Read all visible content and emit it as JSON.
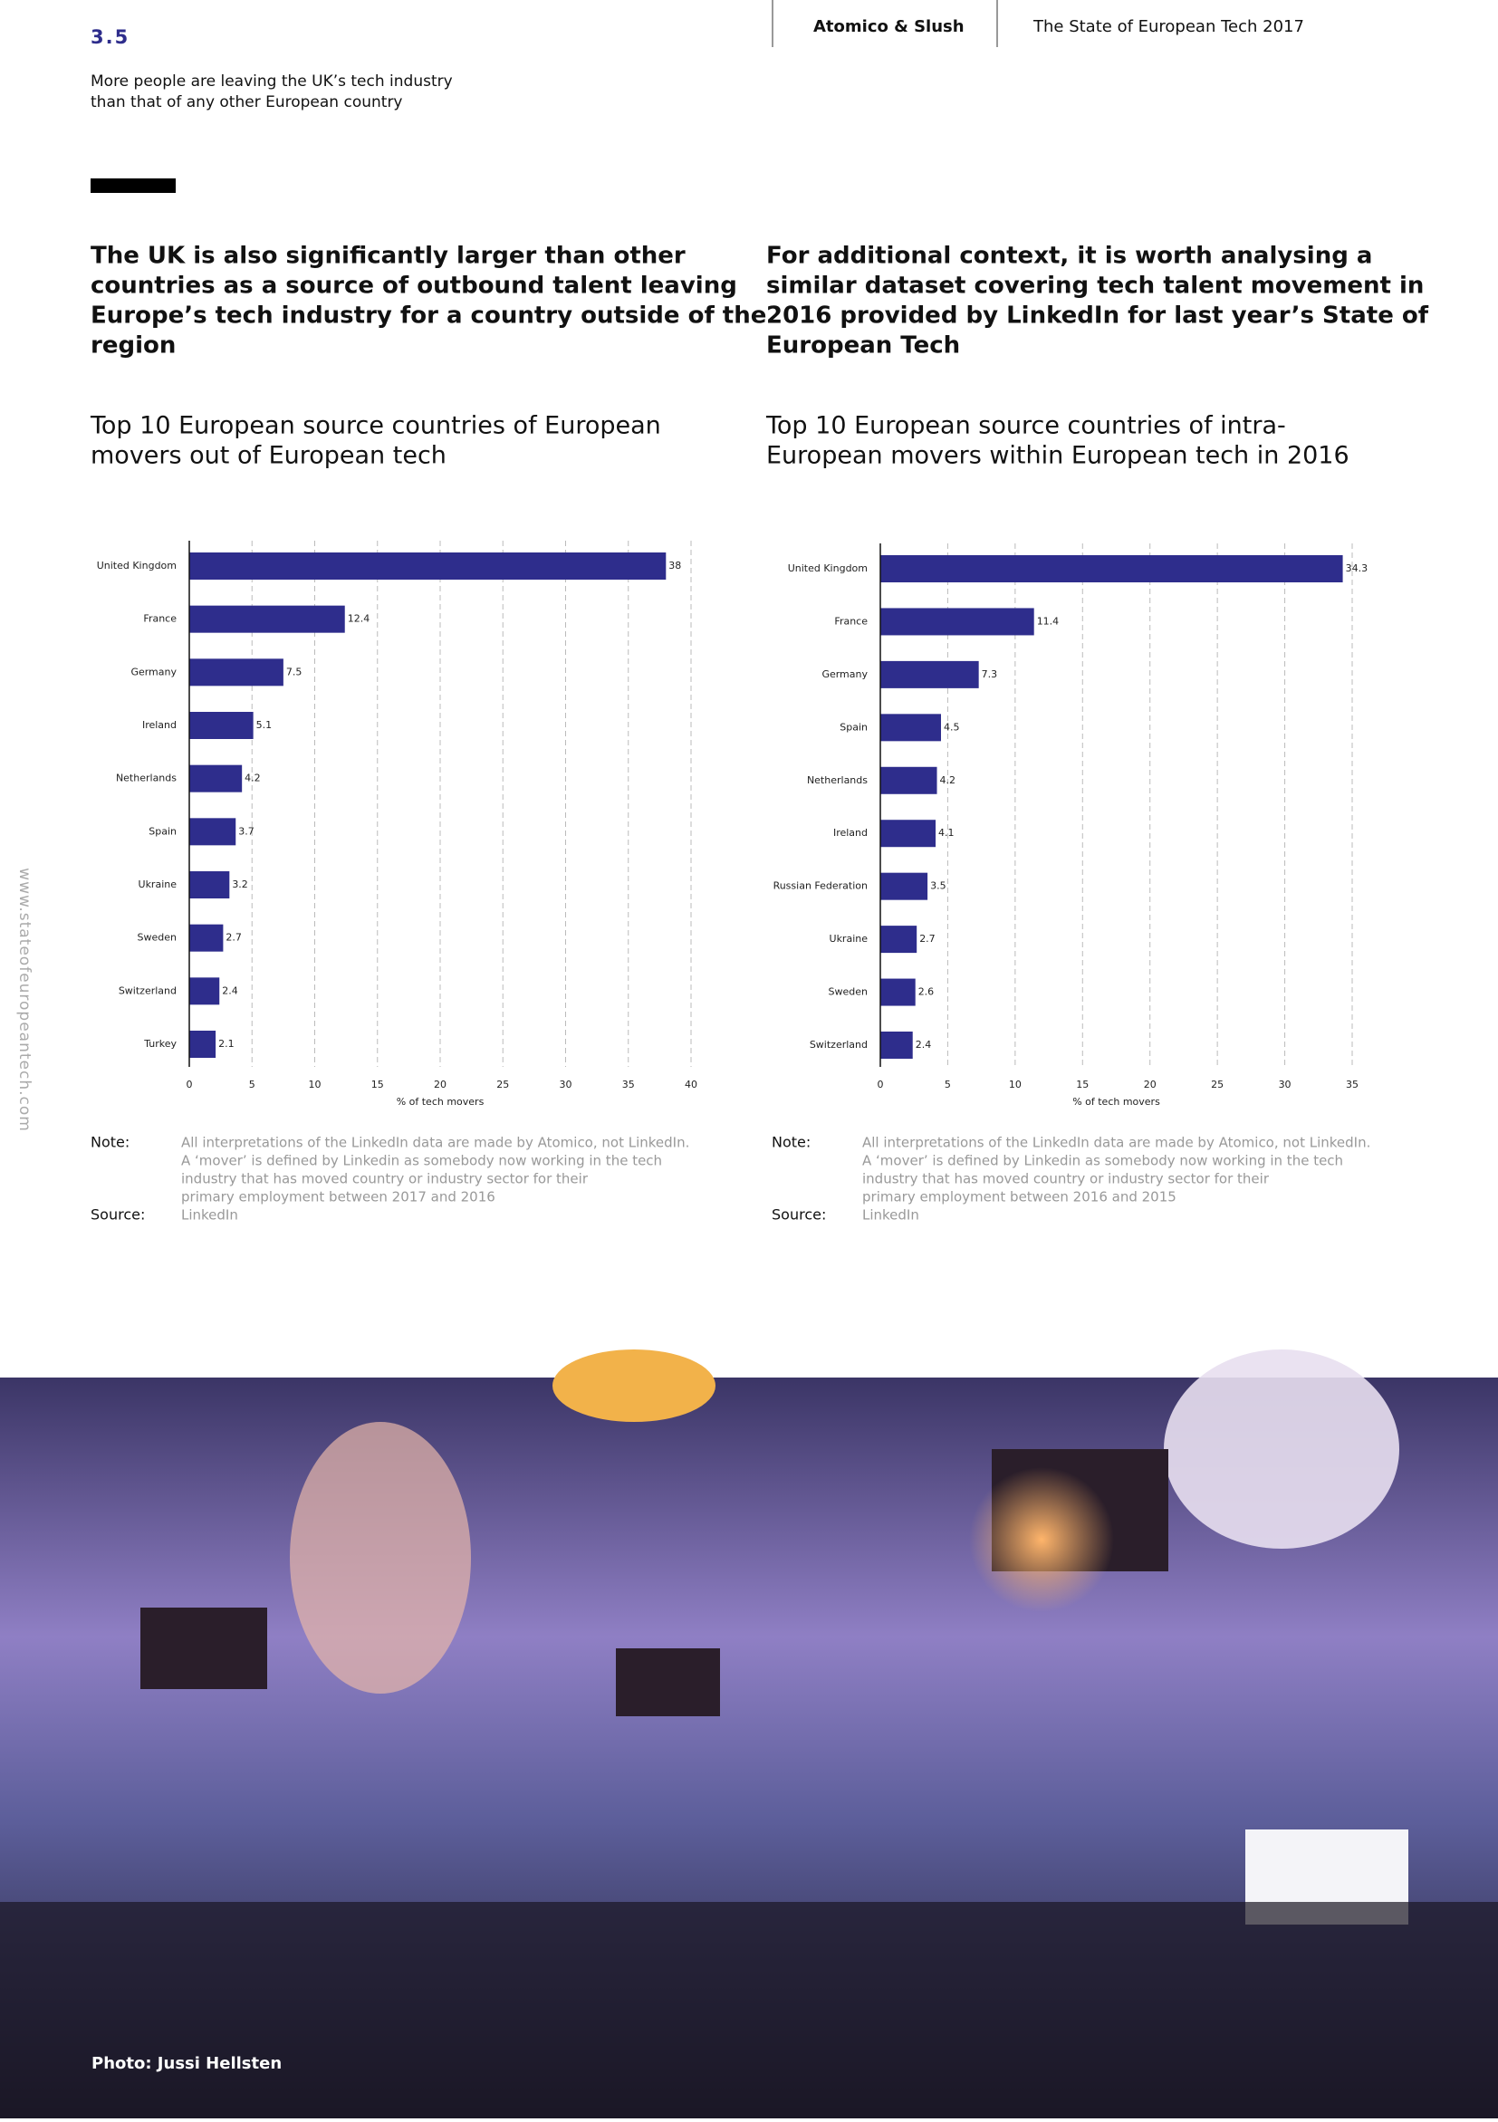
{
  "header": {
    "section": "3.5",
    "subtitle_lines": [
      "More people are leaving the UK’s tech industry",
      "than that of any other European country"
    ],
    "publisher": "Atomico & Slush",
    "report": "The State of European Tech 2017"
  },
  "side_text": "www.stateofeuropeantech.com",
  "headings": [
    [
      "The UK is also significantly larger than other",
      "countries as a source of outbound talent leaving",
      "Europe’s tech industry for a country outside of the",
      "region"
    ],
    [
      "For additional context, it is worth analysing a",
      "similar dataset covering tech talent movement in",
      "2016 provided by LinkedIn for last year’s State of",
      "European Tech"
    ]
  ],
  "chart_data": [
    {
      "type": "bar",
      "orientation": "horizontal",
      "title_lines": [
        "Top 10 European source countries of European",
        "movers out of European tech"
      ],
      "categories": [
        "United Kingdom",
        "France",
        "Germany",
        "Ireland",
        "Netherlands",
        "Spain",
        "Ukraine",
        "Sweden",
        "Switzerland",
        "Turkey"
      ],
      "values": [
        38,
        12.4,
        7.5,
        5.1,
        4.2,
        3.7,
        3.2,
        2.7,
        2.4,
        2.1
      ],
      "color": "#2e2d8c",
      "xlim": [
        0,
        40
      ],
      "xticks": [
        0,
        5,
        10,
        15,
        20,
        25,
        30,
        35,
        40
      ],
      "xlabel": "% of tech movers",
      "grid": true
    },
    {
      "type": "bar",
      "orientation": "horizontal",
      "title_lines": [
        "Top 10 European source countries of intra-",
        "European movers within European tech in 2016"
      ],
      "categories": [
        "United Kingdom",
        "France",
        "Germany",
        "Spain",
        "Netherlands",
        "Ireland",
        "Russian Federation",
        "Ukraine",
        "Sweden",
        "Switzerland"
      ],
      "values": [
        34.3,
        11.4,
        7.3,
        4.5,
        4.2,
        4.1,
        3.5,
        2.7,
        2.6,
        2.4
      ],
      "color": "#2e2d8c",
      "xlim": [
        0,
        35
      ],
      "xticks": [
        0,
        5,
        10,
        15,
        20,
        25,
        30,
        35
      ],
      "xlabel": "% of tech movers",
      "grid": true
    }
  ],
  "notes": [
    {
      "note_label": "Note:",
      "note_lines": [
        "All interpretations of the LinkedIn data are made by Atomico, not LinkedIn.",
        "A ‘mover’ is defined by Linkedin as somebody now working in the tech",
        "industry that has moved country or industry sector for their",
        "primary employment between 2017 and 2016"
      ],
      "source_label": "Source:",
      "source": "LinkedIn"
    },
    {
      "note_label": "Note:",
      "note_lines": [
        "All interpretations of the LinkedIn data are made by Atomico, not LinkedIn.",
        "A ‘mover’ is defined by Linkedin as somebody now working in the tech",
        "industry that has moved country or industry sector for their",
        "primary employment between 2016 and 2015"
      ],
      "source_label": "Source:",
      "source": "LinkedIn"
    }
  ],
  "photo_caption": "Photo: Jussi Hellsten"
}
